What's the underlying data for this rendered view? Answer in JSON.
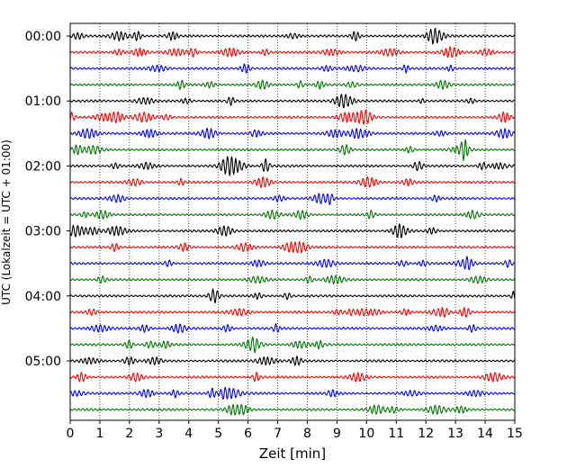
{
  "chart_data": {
    "type": "line",
    "title": "",
    "xlabel": "Zeit  [min]",
    "ylabel": "UTC (Lokalzeit = UTC + 01:00)",
    "xlim": [
      0,
      15
    ],
    "x_ticks": [
      "0",
      "1",
      "2",
      "3",
      "4",
      "5",
      "6",
      "7",
      "8",
      "9",
      "10",
      "11",
      "12",
      "13",
      "14",
      "15"
    ],
    "y_ticks": [
      "00:00",
      "01:00",
      "02:00",
      "03:00",
      "04:00",
      "05:00"
    ],
    "grid": "vertical dotted lines at each minute",
    "trace_interval_minutes": 15,
    "trace_count": 24,
    "trace_color_cycle": [
      "#000000",
      "#ff0000",
      "#0000ff",
      "#007700"
    ],
    "traces": [
      {
        "start": "00:00",
        "color": "#000000"
      },
      {
        "start": "00:15",
        "color": "#ff0000"
      },
      {
        "start": "00:30",
        "color": "#0000ff"
      },
      {
        "start": "00:45",
        "color": "#007700"
      },
      {
        "start": "01:00",
        "color": "#000000"
      },
      {
        "start": "01:15",
        "color": "#ff0000"
      },
      {
        "start": "01:30",
        "color": "#0000ff"
      },
      {
        "start": "01:45",
        "color": "#007700"
      },
      {
        "start": "02:00",
        "color": "#000000"
      },
      {
        "start": "02:15",
        "color": "#ff0000"
      },
      {
        "start": "02:30",
        "color": "#0000ff"
      },
      {
        "start": "02:45",
        "color": "#007700"
      },
      {
        "start": "03:00",
        "color": "#000000"
      },
      {
        "start": "03:15",
        "color": "#ff0000"
      },
      {
        "start": "03:30",
        "color": "#0000ff"
      },
      {
        "start": "03:45",
        "color": "#007700"
      },
      {
        "start": "04:00",
        "color": "#000000"
      },
      {
        "start": "04:15",
        "color": "#ff0000"
      },
      {
        "start": "04:30",
        "color": "#0000ff"
      },
      {
        "start": "04:45",
        "color": "#007700"
      },
      {
        "start": "05:00",
        "color": "#000000"
      },
      {
        "start": "05:15",
        "color": "#ff0000"
      },
      {
        "start": "05:30",
        "color": "#0000ff"
      },
      {
        "start": "05:45",
        "color": "#007700"
      }
    ]
  }
}
